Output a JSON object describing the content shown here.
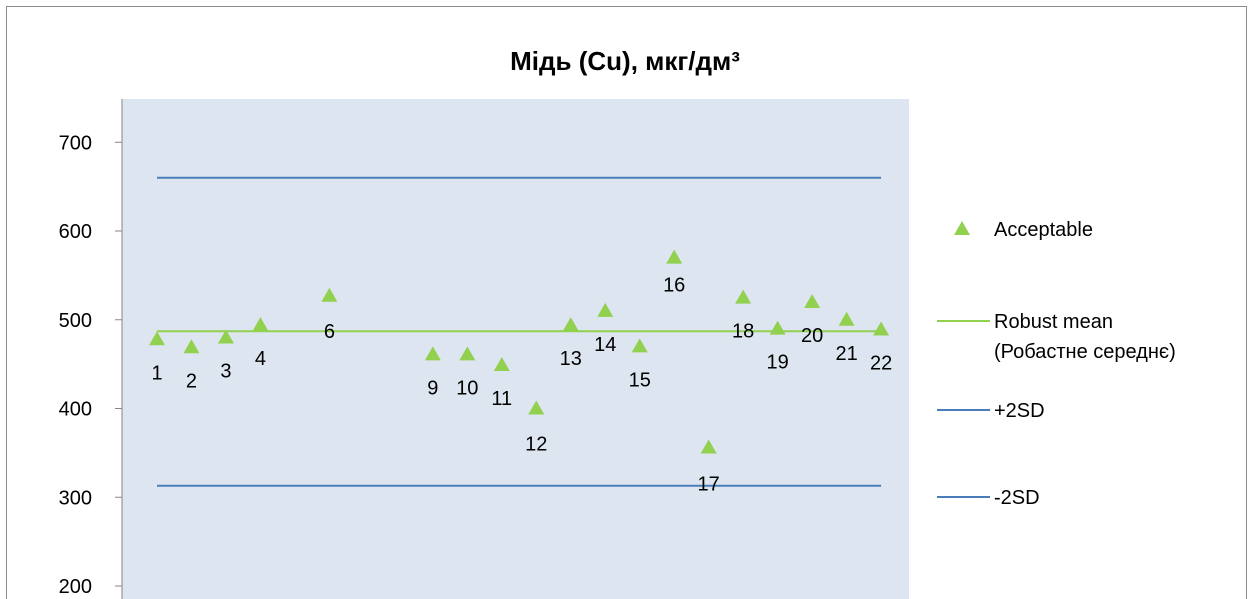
{
  "chart_data": {
    "type": "scatter",
    "title": "Мідь (Cu), мкг/дм³",
    "xlabel": "",
    "ylabel": "",
    "ylim": [
      200,
      700
    ],
    "yticks": [
      200,
      300,
      400,
      500,
      600,
      700
    ],
    "xlim": [
      0,
      22
    ],
    "grid": false,
    "legend_position": "right",
    "series": [
      {
        "name": "Acceptable",
        "marker": "triangle",
        "color": "#92d050",
        "points": [
          {
            "x": 1,
            "y": 478,
            "label": "1"
          },
          {
            "x": 2,
            "y": 469,
            "label": "2"
          },
          {
            "x": 3,
            "y": 480,
            "label": "3"
          },
          {
            "x": 4,
            "y": 494,
            "label": "4"
          },
          {
            "x": 6,
            "y": 527,
            "label": "6"
          },
          {
            "x": 9,
            "y": 461,
            "label": "9"
          },
          {
            "x": 10,
            "y": 461,
            "label": "10"
          },
          {
            "x": 11,
            "y": 449,
            "label": "11"
          },
          {
            "x": 12,
            "y": 400,
            "label": "12"
          },
          {
            "x": 13,
            "y": 494,
            "label": "13"
          },
          {
            "x": 14,
            "y": 510,
            "label": "14"
          },
          {
            "x": 15,
            "y": 470,
            "label": "15"
          },
          {
            "x": 16,
            "y": 570,
            "label": "16"
          },
          {
            "x": 17,
            "y": 356,
            "label": "17"
          },
          {
            "x": 18,
            "y": 525,
            "label": "18"
          },
          {
            "x": 19,
            "y": 490,
            "label": "19"
          },
          {
            "x": 20,
            "y": 520,
            "label": "20"
          },
          {
            "x": 21,
            "y": 500,
            "label": "21"
          },
          {
            "x": 22,
            "y": 489,
            "label": "22"
          }
        ]
      },
      {
        "name": "Robust mean (Робастне середнє)",
        "legend_lines": [
          "Robust mean",
          "(Робастне середнє)"
        ],
        "type": "line",
        "color": "#92d050",
        "y": 487,
        "x_range": [
          1,
          22
        ]
      },
      {
        "name": "+2SD",
        "type": "line",
        "color": "#4a7ebb",
        "y": 660,
        "x_range": [
          1,
          22
        ]
      },
      {
        "name": "-2SD",
        "type": "line",
        "color": "#4a7ebb",
        "y": 313,
        "x_range": [
          1,
          22
        ]
      }
    ],
    "plot_background": "#dde6f0"
  }
}
